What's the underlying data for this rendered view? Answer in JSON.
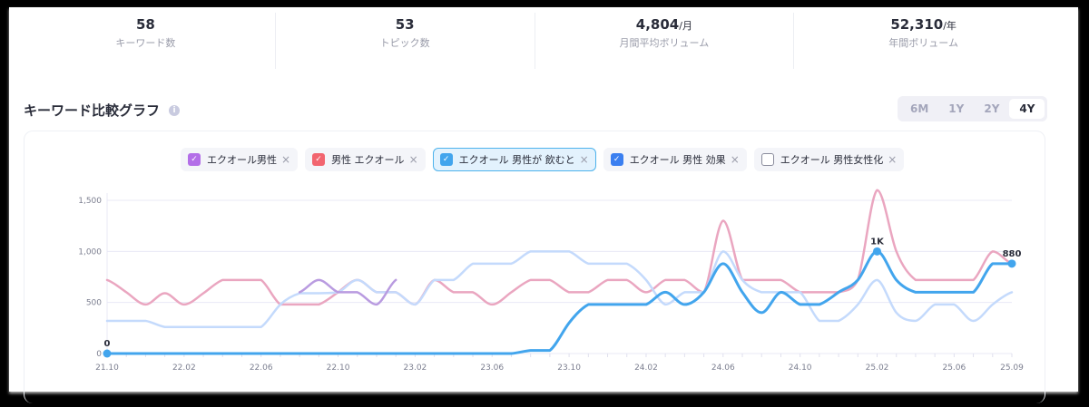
{
  "stats": [
    {
      "value": "58",
      "unit": "",
      "label": "キーワード数"
    },
    {
      "value": "53",
      "unit": "",
      "label": "トピック数"
    },
    {
      "value": "4,804",
      "unit": "/月",
      "label": "月間平均ボリューム"
    },
    {
      "value": "52,310",
      "unit": "/年",
      "label": "年間ボリューム"
    }
  ],
  "section": {
    "title": "キーワード比較グラフ",
    "info_icon": "i"
  },
  "range_tabs": [
    {
      "label": "6M",
      "active": false
    },
    {
      "label": "1Y",
      "active": false
    },
    {
      "label": "2Y",
      "active": false
    },
    {
      "label": "4Y",
      "active": true
    }
  ],
  "legend": [
    {
      "label": "エクオール男性",
      "checked": true,
      "color": "#b36ee8",
      "close": "×"
    },
    {
      "label": "男性 エクオール",
      "checked": true,
      "color": "#f2656f",
      "close": "×"
    },
    {
      "label": "エクオール 男性が 飲むと",
      "checked": true,
      "color": "#42a5ed",
      "close": "×",
      "highlighted": true
    },
    {
      "label": "エクオール 男性 効果",
      "checked": true,
      "color": "#3b7ff0",
      "close": "×"
    },
    {
      "label": "エクオール 男性女性化",
      "checked": false,
      "color": "#8a8c9c",
      "close": "×"
    }
  ],
  "chart_data": {
    "type": "line",
    "title": "キーワード比較グラフ",
    "xlabel": "",
    "ylabel": "",
    "ylim": [
      0,
      1600
    ],
    "yticks": [
      0,
      500,
      1000,
      1500
    ],
    "ytick_labels": [
      "0",
      "500",
      "1,000",
      "1,500"
    ],
    "xtick_labels": [
      "21.10",
      "22.02",
      "22.06",
      "22.10",
      "23.02",
      "23.06",
      "23.10",
      "24.02",
      "24.06",
      "24.10",
      "25.02",
      "25.06",
      "25.09"
    ],
    "x": [
      "21.10",
      "21.11",
      "21.12",
      "22.01",
      "22.02",
      "22.03",
      "22.04",
      "22.05",
      "22.06",
      "22.07",
      "22.08",
      "22.09",
      "22.10",
      "22.11",
      "22.12",
      "23.01",
      "23.02",
      "23.03",
      "23.04",
      "23.05",
      "23.06",
      "23.07",
      "23.08",
      "23.09",
      "23.10",
      "23.11",
      "23.12",
      "24.01",
      "24.02",
      "24.03",
      "24.04",
      "24.05",
      "24.06",
      "24.07",
      "24.08",
      "24.09",
      "24.10",
      "24.11",
      "24.12",
      "25.01",
      "25.02",
      "25.03",
      "25.04",
      "25.05",
      "25.06",
      "25.07",
      "25.08",
      "25.09"
    ],
    "grid": true,
    "series": [
      {
        "name": "男性 エクオール",
        "color": "#eaa6c0",
        "values": [
          720,
          600,
          480,
          590,
          480,
          590,
          720,
          720,
          720,
          480,
          480,
          480,
          600,
          720,
          600,
          600,
          480,
          720,
          600,
          600,
          480,
          600,
          720,
          720,
          600,
          600,
          720,
          720,
          600,
          720,
          720,
          600,
          1300,
          720,
          720,
          720,
          600,
          600,
          600,
          720,
          1600,
          1000,
          720,
          720,
          720,
          720,
          1000,
          880
        ]
      },
      {
        "name": "エクオール 男性 効果",
        "color": "#c4dafc",
        "values": [
          320,
          320,
          320,
          260,
          260,
          260,
          260,
          260,
          260,
          480,
          590,
          590,
          600,
          720,
          600,
          600,
          480,
          720,
          720,
          880,
          880,
          880,
          1000,
          1000,
          1000,
          880,
          880,
          880,
          720,
          480,
          600,
          600,
          1000,
          720,
          600,
          600,
          600,
          320,
          320,
          480,
          720,
          400,
          320,
          480,
          480,
          320,
          480,
          600
        ]
      },
      {
        "name": "エクオール男性",
        "color": "#b99be0",
        "values": [
          null,
          null,
          null,
          null,
          null,
          null,
          null,
          null,
          null,
          null,
          600,
          720,
          600,
          600,
          480,
          720,
          null,
          null,
          null,
          null,
          null,
          null,
          null,
          null,
          null,
          null,
          null,
          null,
          null,
          null,
          null,
          null,
          null,
          null,
          null,
          null,
          null,
          null,
          null,
          null,
          null,
          null,
          null,
          null,
          null,
          null,
          null,
          null
        ]
      },
      {
        "name": "エクオール 男性が 飲むと",
        "color": "#42a5ed",
        "values": [
          0,
          0,
          0,
          0,
          0,
          0,
          0,
          0,
          0,
          0,
          0,
          0,
          0,
          0,
          0,
          0,
          0,
          0,
          0,
          0,
          0,
          0,
          30,
          30,
          300,
          480,
          480,
          480,
          480,
          600,
          480,
          600,
          880,
          600,
          400,
          600,
          480,
          480,
          600,
          720,
          1000,
          720,
          600,
          600,
          600,
          600,
          880,
          880
        ]
      }
    ],
    "annotations": [
      {
        "x": "21.10",
        "label": "0"
      },
      {
        "x": "25.02",
        "label": "1K"
      },
      {
        "x": "25.09",
        "label": "880"
      }
    ]
  }
}
